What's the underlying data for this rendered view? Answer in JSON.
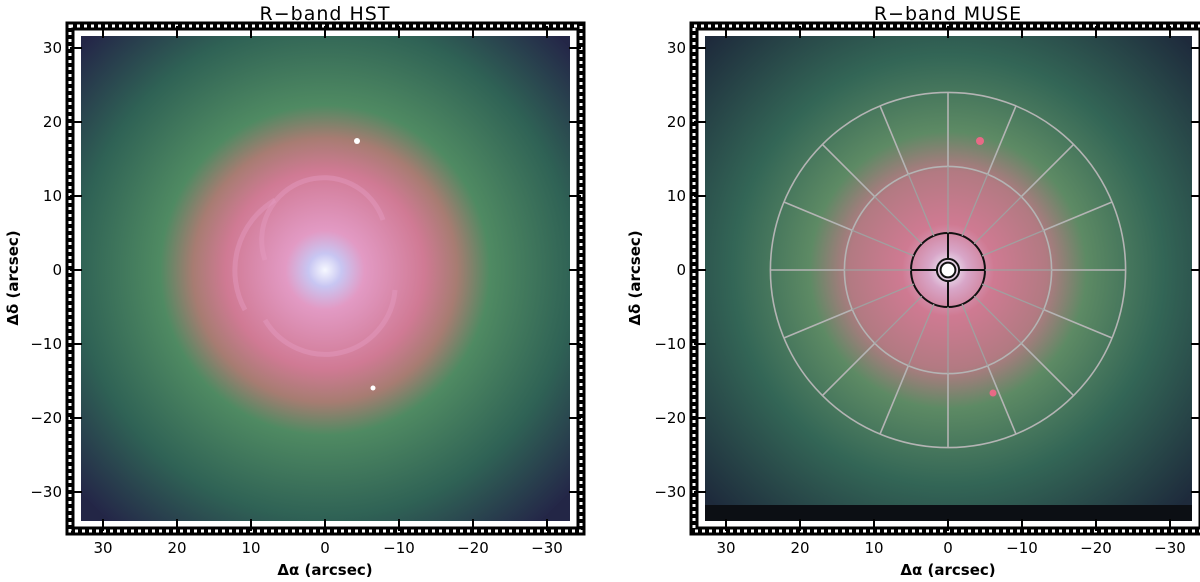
{
  "panels": [
    {
      "id": "hst",
      "title": "R−band HST",
      "xlabel": "Δα (arcsec)",
      "ylabel": "Δδ (arcsec)",
      "x_ticks": [
        "30",
        "20",
        "10",
        "0",
        "−10",
        "−20",
        "−30"
      ],
      "y_ticks": [
        "30",
        "20",
        "10",
        "0",
        "−10",
        "−20",
        "−30"
      ],
      "x_range": [
        33,
        -33
      ],
      "y_range": [
        -33,
        33
      ],
      "image_description_colors": {
        "background": "#242748",
        "disk": "#3f7a5e",
        "core": "#d27896",
        "nucleus": "#f2f6ff"
      }
    },
    {
      "id": "muse",
      "title": "R−band MUSE",
      "xlabel": "Δα (arcsec)",
      "ylabel": "Δδ (arcsec)",
      "x_ticks": [
        "30",
        "20",
        "10",
        "0",
        "−10",
        "−20",
        "−30"
      ],
      "y_ticks": [
        "30",
        "20",
        "10",
        "0",
        "−10",
        "−20",
        "−30"
      ],
      "x_range": [
        33,
        -33
      ],
      "y_range": [
        -33,
        33
      ],
      "overlay_rings_arcsec": [
        24,
        14,
        5,
        1.5,
        1
      ],
      "overlay_sectors": 16,
      "image_description_colors": {
        "background": "#1e2b3c",
        "disk": "#3c7a5c",
        "core": "#cf7a92",
        "grid": "#b4b4b4"
      }
    }
  ]
}
